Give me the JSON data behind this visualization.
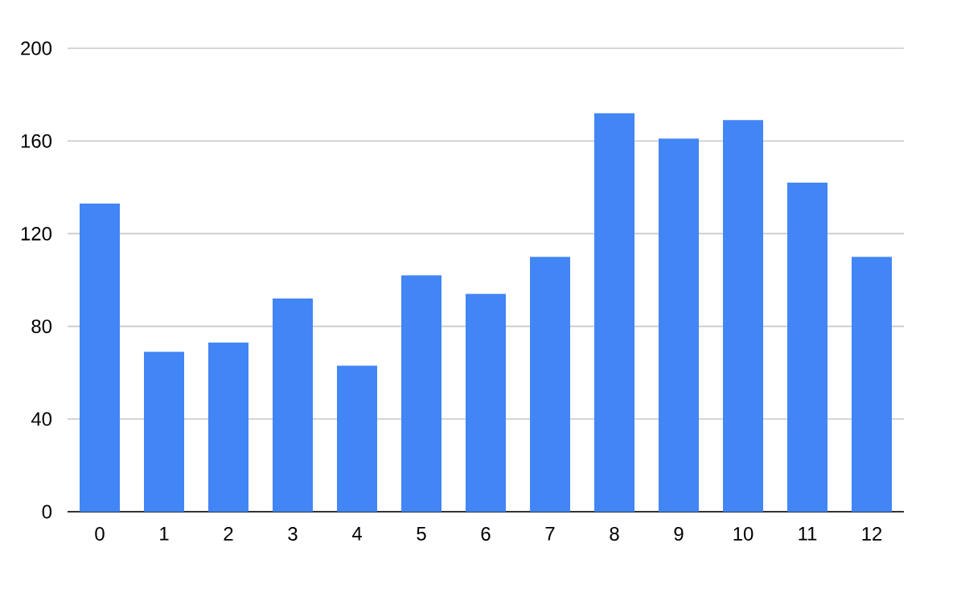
{
  "chart_data": {
    "type": "bar",
    "categories": [
      "0",
      "1",
      "2",
      "3",
      "4",
      "5",
      "6",
      "7",
      "8",
      "9",
      "10",
      "11",
      "12"
    ],
    "values": [
      133,
      69,
      73,
      92,
      63,
      102,
      94,
      110,
      172,
      161,
      169,
      142,
      110
    ],
    "color": "#4285f4",
    "ylim": [
      0,
      200
    ],
    "yticks": [
      0,
      40,
      80,
      120,
      160,
      200
    ],
    "grid": "y"
  }
}
